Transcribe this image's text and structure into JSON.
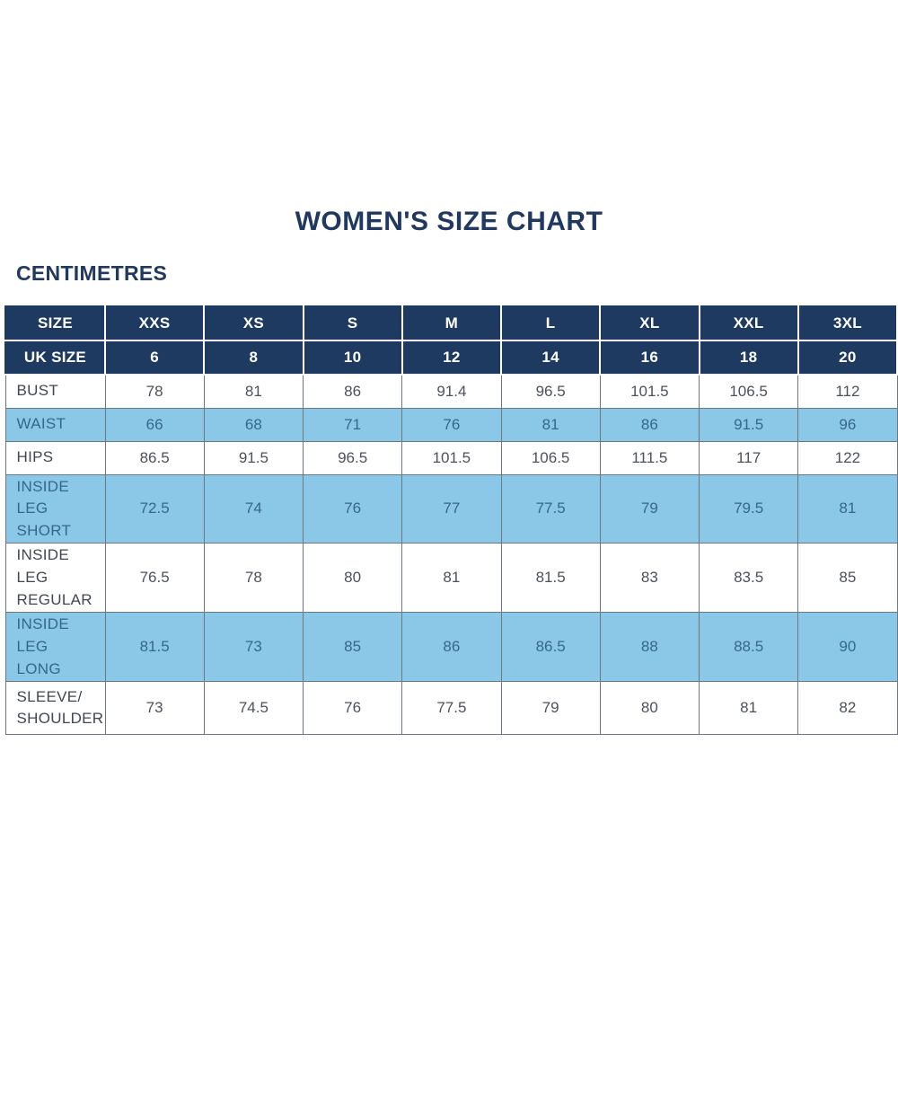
{
  "colors": {
    "navy_header": "#1E3A61",
    "light_blue_row": "#8BC8E8",
    "white_row_text": "#4A525B",
    "blue_row_text": "#35678A",
    "grid_line": "#6D7780",
    "title_text": "#21395F"
  },
  "chart_data": {
    "type": "table",
    "title": "WOMEN'S SIZE CHART",
    "unit_label": "CENTIMETRES",
    "header_rows": [
      {
        "label": "SIZE",
        "values": [
          "XXS",
          "XS",
          "S",
          "M",
          "L",
          "XL",
          "XXL",
          "3XL"
        ]
      },
      {
        "label": "UK SIZE",
        "values": [
          "6",
          "8",
          "10",
          "12",
          "14",
          "16",
          "18",
          "20"
        ]
      }
    ],
    "rows": [
      {
        "label": "BUST",
        "values": [
          "78",
          "81",
          "86",
          "91.4",
          "96.5",
          "101.5",
          "106.5",
          "112"
        ]
      },
      {
        "label": "WAIST",
        "values": [
          "66",
          "68",
          "71",
          "76",
          "81",
          "86",
          "91.5",
          "96"
        ]
      },
      {
        "label": "HIPS",
        "values": [
          "86.5",
          "91.5",
          "96.5",
          "101.5",
          "106.5",
          "111.5",
          "117",
          "122"
        ]
      },
      {
        "label": "INSIDE LEG\nSHORT",
        "values": [
          "72.5",
          "74",
          "76",
          "77",
          "77.5",
          "79",
          "79.5",
          "81"
        ]
      },
      {
        "label": "INSIDE LEG\nREGULAR",
        "values": [
          "76.5",
          "78",
          "80",
          "81",
          "81.5",
          "83",
          "83.5",
          "85"
        ]
      },
      {
        "label": "INSIDE LEG\nLONG",
        "values": [
          "81.5",
          "73",
          "85",
          "86",
          "86.5",
          "88",
          "88.5",
          "90"
        ]
      },
      {
        "label": "SLEEVE/\nSHOULDER",
        "values": [
          "73",
          "74.5",
          "76",
          "77.5",
          "79",
          "80",
          "81",
          "82"
        ]
      }
    ]
  }
}
